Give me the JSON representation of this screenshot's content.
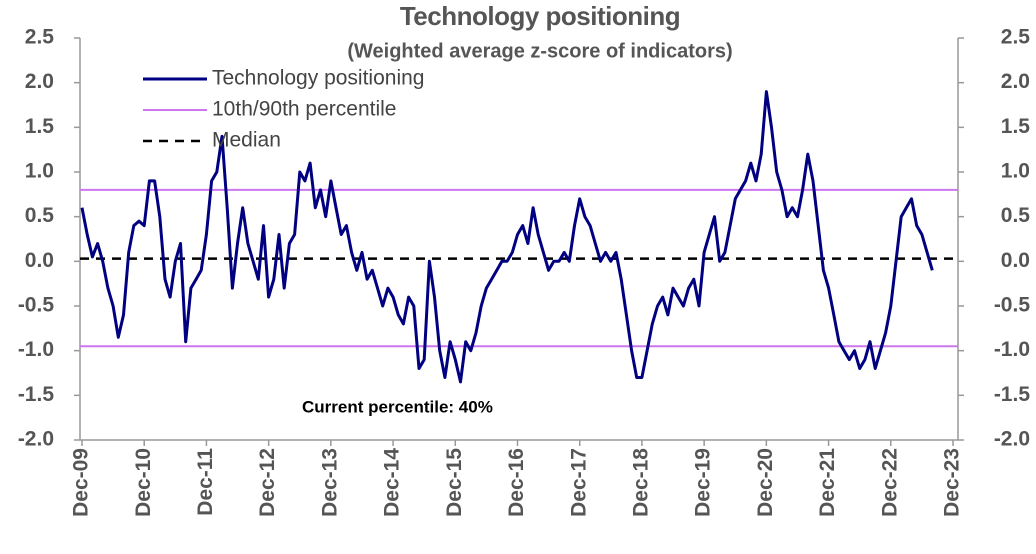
{
  "chart_data": {
    "type": "line",
    "title": "Technology positioning",
    "subtitle": "(Weighted average z-score of indicators)",
    "annotation": "Current percentile: 40%",
    "x": [
      "Dec-09",
      null,
      null,
      null,
      null,
      null,
      null,
      null,
      null,
      null,
      null,
      null,
      "Dec-10",
      null,
      null,
      null,
      null,
      null,
      null,
      null,
      null,
      null,
      null,
      null,
      "Dec-11",
      null,
      null,
      null,
      null,
      null,
      null,
      null,
      null,
      null,
      null,
      null,
      "Dec-12",
      null,
      null,
      null,
      null,
      null,
      null,
      null,
      null,
      null,
      null,
      null,
      "Dec-13",
      null,
      null,
      null,
      null,
      null,
      null,
      null,
      null,
      null,
      null,
      null,
      "Dec-14",
      null,
      null,
      null,
      null,
      null,
      null,
      null,
      null,
      null,
      null,
      null,
      "Dec-15",
      null,
      null,
      null,
      null,
      null,
      null,
      null,
      null,
      null,
      null,
      null,
      "Dec-16",
      null,
      null,
      null,
      null,
      null,
      null,
      null,
      null,
      null,
      null,
      null,
      "Dec-17",
      null,
      null,
      null,
      null,
      null,
      null,
      null,
      null,
      null,
      null,
      null,
      "Dec-18",
      null,
      null,
      null,
      null,
      null,
      null,
      null,
      null,
      null,
      null,
      null,
      "Dec-19",
      null,
      null,
      null,
      null,
      null,
      null,
      null,
      null,
      null,
      null,
      null,
      "Dec-20",
      null,
      null,
      null,
      null,
      null,
      null,
      null,
      null,
      null,
      null,
      null,
      "Dec-21",
      null,
      null,
      null,
      null,
      null,
      null,
      null,
      null,
      null,
      null,
      null,
      "Dec-22",
      null,
      null,
      null,
      null,
      null,
      null,
      null,
      null,
      null,
      null,
      null,
      "Dec-23"
    ],
    "series": [
      {
        "name": "Technology positioning",
        "color": "#000080",
        "values": [
          0.6,
          0.3,
          0.05,
          0.2,
          0.0,
          -0.3,
          -0.5,
          -0.85,
          -0.6,
          0.1,
          0.4,
          0.45,
          0.4,
          0.9,
          0.9,
          0.5,
          -0.2,
          -0.4,
          0.0,
          0.2,
          -0.9,
          -0.3,
          -0.2,
          -0.1,
          0.3,
          0.9,
          1.0,
          1.4,
          0.6,
          -0.3,
          0.2,
          0.6,
          0.2,
          0.0,
          -0.2,
          0.4,
          -0.4,
          -0.2,
          0.3,
          -0.3,
          0.2,
          0.3,
          1.0,
          0.9,
          1.1,
          0.6,
          0.8,
          0.5,
          0.9,
          0.6,
          0.3,
          0.4,
          0.1,
          -0.1,
          0.1,
          -0.2,
          -0.1,
          -0.3,
          -0.5,
          -0.3,
          -0.4,
          -0.6,
          -0.7,
          -0.4,
          -0.5,
          -1.2,
          -1.1,
          0.0,
          -0.4,
          -1.0,
          -1.3,
          -0.9,
          -1.1,
          -1.35,
          -0.9,
          -1.0,
          -0.8,
          -0.5,
          -0.3,
          -0.2,
          -0.1,
          0.0,
          0.0,
          0.1,
          0.3,
          0.4,
          0.2,
          0.6,
          0.3,
          0.1,
          -0.1,
          0.0,
          0.0,
          0.1,
          0.0,
          0.4,
          0.7,
          0.5,
          0.4,
          0.2,
          0.0,
          0.1,
          0.0,
          0.1,
          -0.2,
          -0.6,
          -1.0,
          -1.3,
          -1.3,
          -1.0,
          -0.7,
          -0.5,
          -0.4,
          -0.6,
          -0.3,
          -0.4,
          -0.5,
          -0.3,
          -0.2,
          -0.5,
          0.1,
          0.3,
          0.5,
          0.0,
          0.1,
          0.4,
          0.7,
          0.8,
          0.9,
          1.1,
          0.9,
          1.2,
          1.9,
          1.5,
          1.0,
          0.8,
          0.5,
          0.6,
          0.5,
          0.8,
          1.2,
          0.9,
          0.4,
          -0.1,
          -0.3,
          -0.6,
          -0.9,
          -1.0,
          -1.1,
          -1.0,
          -1.2,
          -1.1,
          -0.9,
          -1.2,
          -1.0,
          -0.8,
          -0.5,
          0.0,
          0.5,
          0.6,
          0.7,
          0.4,
          0.3,
          0.1,
          -0.1,
          null,
          null,
          null,
          null
        ]
      }
    ],
    "reference_lines": [
      {
        "name": "10th/90th percentile",
        "color": "#cc77ee",
        "values": [
          0.8,
          -0.95
        ]
      },
      {
        "name": "Median",
        "color": "#000000",
        "dashed": true,
        "values": [
          0.03
        ]
      }
    ],
    "ylim": [
      -2.0,
      2.5
    ],
    "yticks": [
      {
        "value": 2.5,
        "label": "2.5"
      },
      {
        "value": 2.0,
        "label": "2.0"
      },
      {
        "value": 1.5,
        "label": "1.5"
      },
      {
        "value": 1.0,
        "label": "1.0"
      },
      {
        "value": 0.5,
        "label": "0.5"
      },
      {
        "value": 0.0,
        "label": "0.0"
      },
      {
        "value": -0.5,
        "label": "-0.5"
      },
      {
        "value": -1.0,
        "label": "-1.0"
      },
      {
        "value": -1.5,
        "label": "-1.5"
      },
      {
        "value": -2.0,
        "label": "-2.0"
      }
    ],
    "y2lim": [
      -2.0,
      2.5
    ],
    "y2ticks": [
      {
        "value": 2.5,
        "label": "2.5"
      },
      {
        "value": 2.0,
        "label": "2.0"
      },
      {
        "value": 1.5,
        "label": "1.5"
      },
      {
        "value": 1.0,
        "label": "1.0"
      },
      {
        "value": 0.5,
        "label": "0.5"
      },
      {
        "value": 0.0,
        "label": "0.0"
      },
      {
        "value": -0.5,
        "label": "-0.5"
      },
      {
        "value": -1.0,
        "label": "-1.0"
      },
      {
        "value": -1.5,
        "label": "-1.5"
      },
      {
        "value": -2.0,
        "label": "-2.0"
      }
    ]
  }
}
